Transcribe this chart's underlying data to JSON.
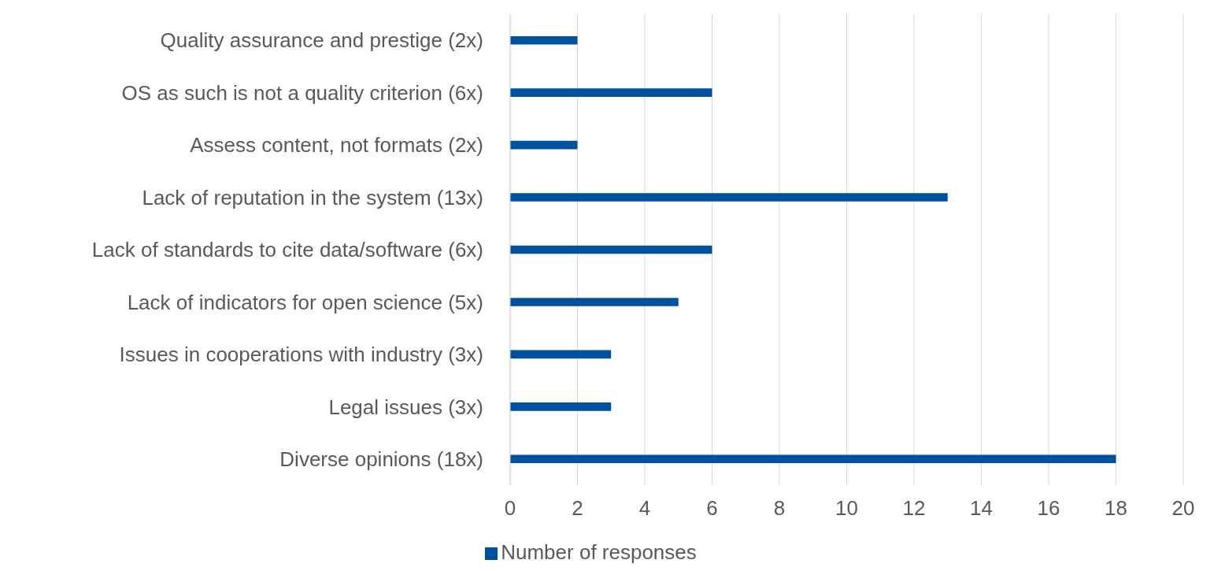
{
  "chart_data": {
    "type": "bar",
    "orientation": "horizontal",
    "categories": [
      "Quality assurance and prestige (2x)",
      "OS as such is not a quality criterion (6x)",
      "Assess content, not formats (2x)",
      "Lack of reputation in the system (13x)",
      "Lack of standards to cite data/software (6x)",
      "Lack of indicators for open science (5x)",
      "Issues in cooperations with industry (3x)",
      "Legal issues (3x)",
      "Diverse opinions (18x)"
    ],
    "series": [
      {
        "name": "Number of responses",
        "color": "#0050a0",
        "values": [
          2,
          6,
          2,
          13,
          6,
          5,
          3,
          3,
          18
        ]
      }
    ],
    "xlim": [
      0,
      20
    ],
    "xticks": [
      0,
      2,
      4,
      6,
      8,
      10,
      12,
      14,
      16,
      18,
      20
    ],
    "grid": "x",
    "legend": "bottom"
  }
}
